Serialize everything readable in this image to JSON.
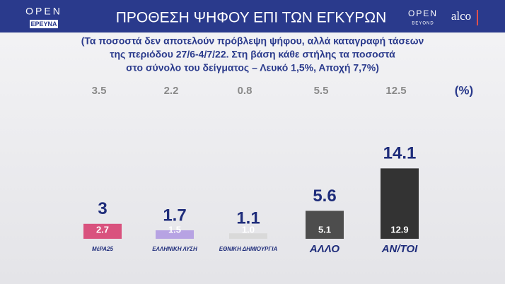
{
  "header": {
    "logo": "OPEN",
    "logo_sub": "ΕΡΕΥΝΑ",
    "partner": "OPEN",
    "partner_sub": "BEYOND",
    "pollster": "alco"
  },
  "chart_data": {
    "type": "bar",
    "title": "ΠΡΟΘΕΣΗ ΨΗΦΟΥ ΕΠΙ ΤΩΝ ΕΓΚΥΡΩΝ",
    "subtitle": [
      "(Τα ποσοστά δεν αποτελούν πρόβλεψη ψήφου, αλλά καταγραφή τάσεων",
      "της περιόδου 27/6-4/7/22. Στη βάση κάθε στήλης τα ποσοστά",
      "στο σύνολο του δείγματος – Λευκό 1,5%, Αποχή 7,7%)"
    ],
    "unit": "(%)",
    "categories": [
      "ΜέΡΑ25",
      "ΕΛΛΗΝΙΚΗ ΛΥΣΗ",
      "ΕΘΝΙΚΗ ΔΗΜΙΟΥΡΓΙΑ",
      "ΑΛΛΟ",
      "ΑΝ/ΤΟΙ"
    ],
    "values": [
      3,
      1.7,
      1.1,
      5.6,
      14.1
    ],
    "colors": [
      "#d9527e",
      "#b7a3e3",
      "#d9d9d9",
      "#4d4d4d",
      "#333333"
    ],
    "base_values": [
      2.7,
      1.5,
      1,
      5.1,
      12.9
    ],
    "base_value_labels": [
      "2.7",
      "1.5",
      "1.0",
      "5.1",
      "12.9"
    ],
    "previous_values": [
      3.5,
      2.2,
      0.8,
      5.5,
      12.5
    ],
    "ylim": [
      0,
      15
    ]
  }
}
